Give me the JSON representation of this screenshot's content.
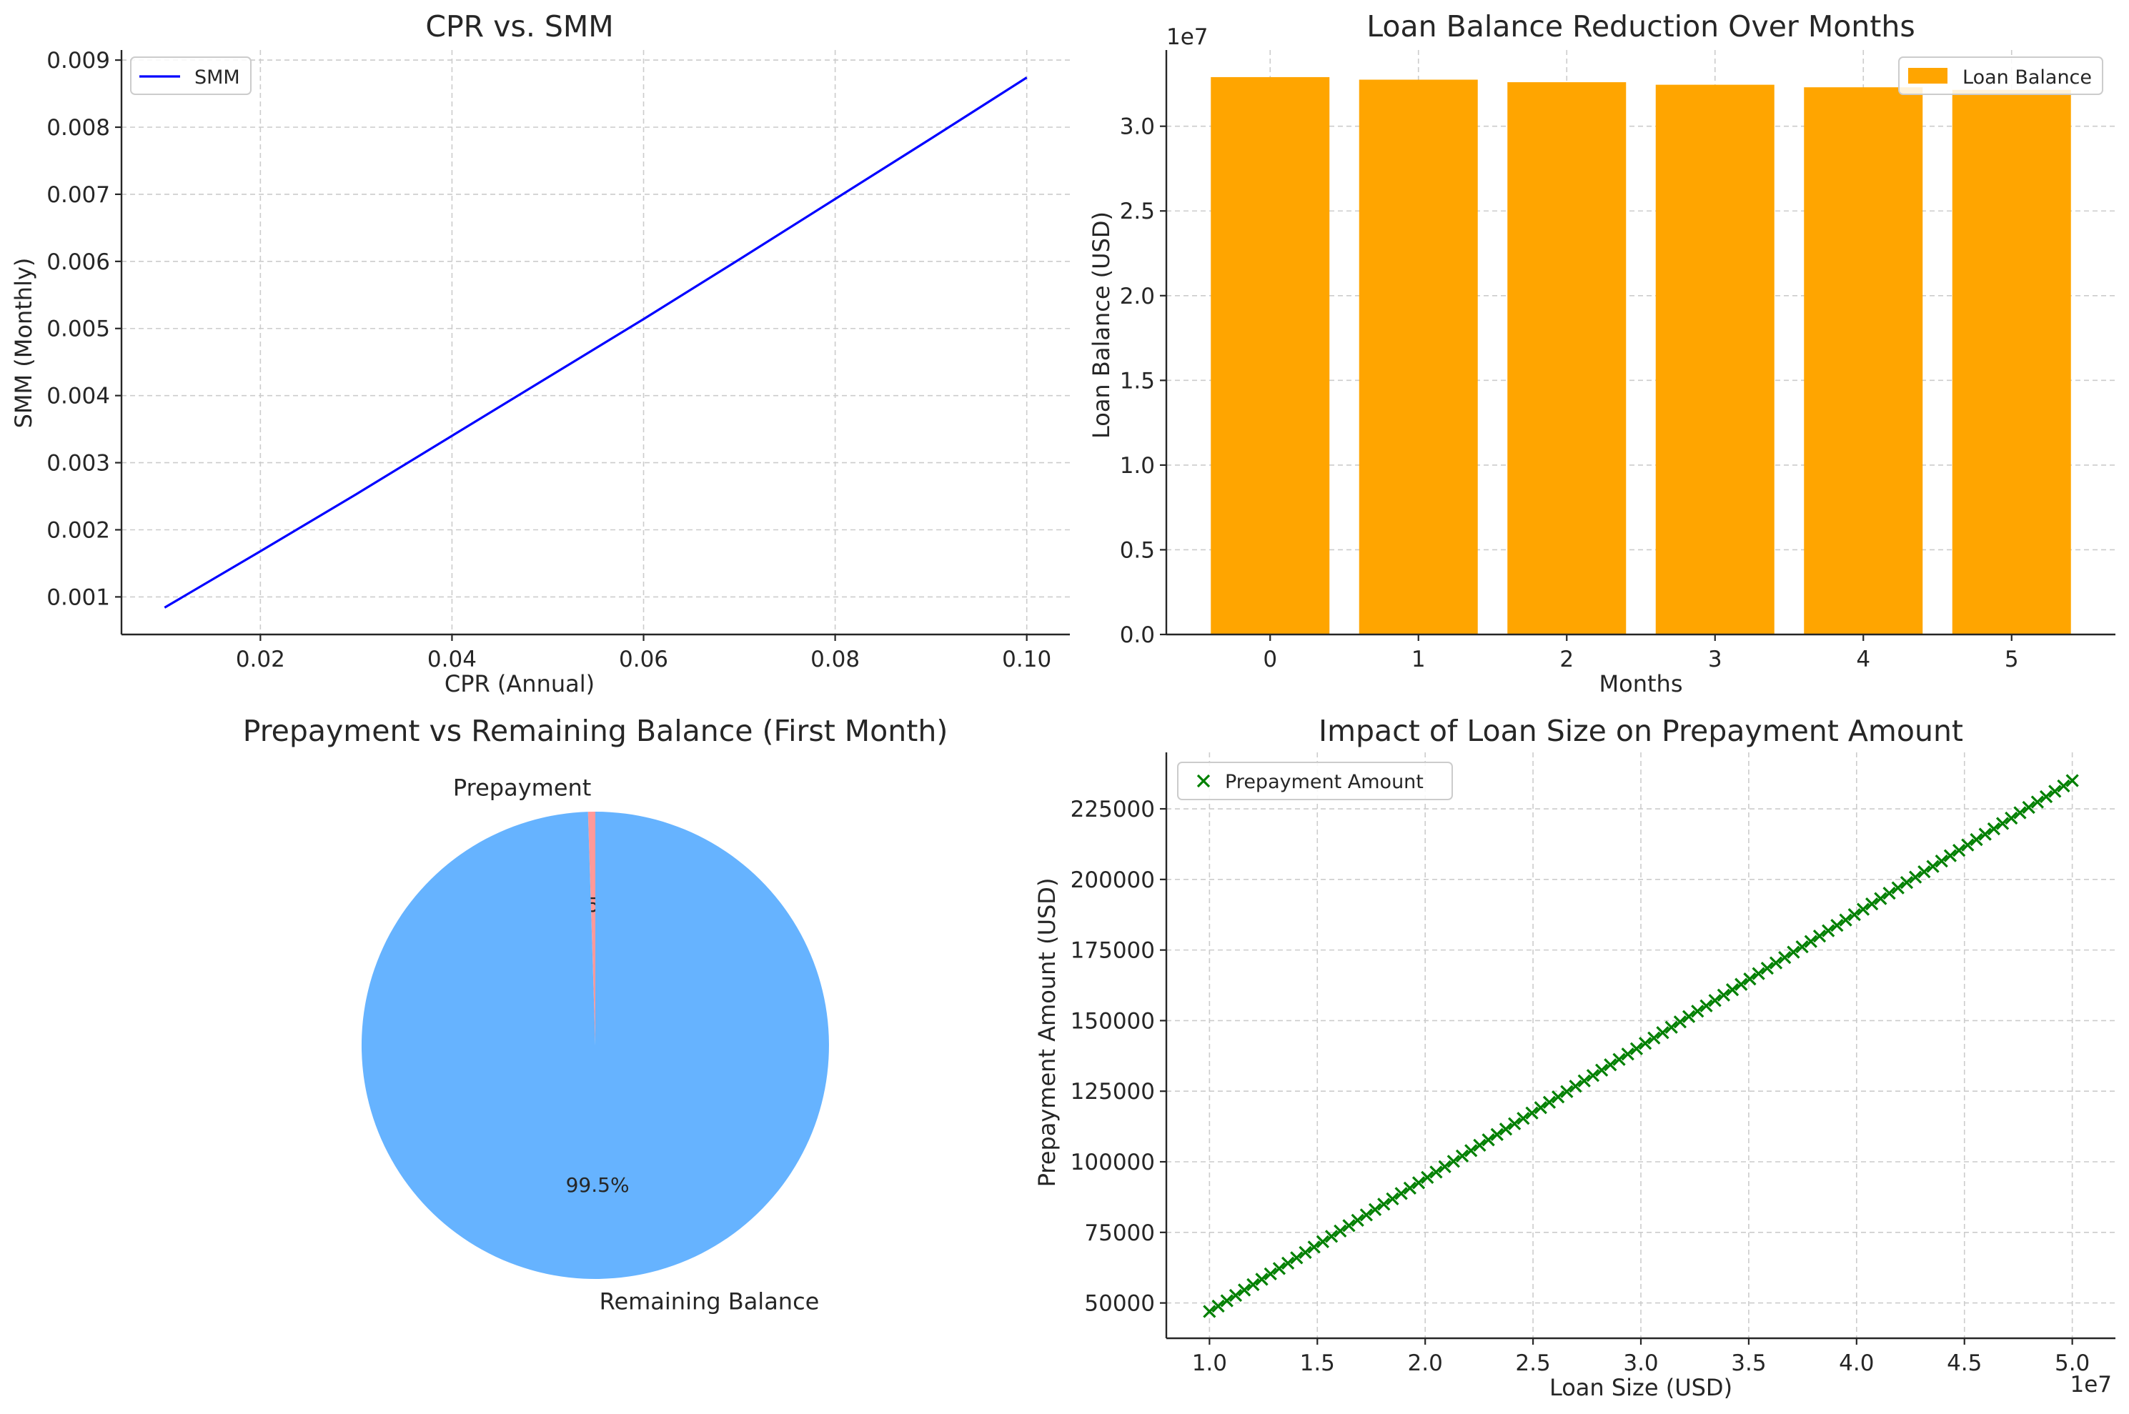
{
  "colors": {
    "smm_line": "#0000ff",
    "bar": "#ffa500",
    "prepay_slice": "#ff9999",
    "remaining_slice": "#66b3ff",
    "scatter": "#008000"
  },
  "chart_data": [
    {
      "type": "line",
      "title": "CPR vs. SMM",
      "xlabel": "CPR (Annual)",
      "ylabel": "SMM (Monthly)",
      "xlim": [
        0.0055,
        0.1045
      ],
      "ylim": [
        0.00044,
        0.00915
      ],
      "xticks": [
        "0.02",
        "0.04",
        "0.06",
        "0.08",
        "0.10"
      ],
      "xtick_values": [
        0.02,
        0.04,
        0.06,
        0.08,
        0.1
      ],
      "yticks": [
        "0.001",
        "0.002",
        "0.003",
        "0.004",
        "0.005",
        "0.006",
        "0.007",
        "0.008",
        "0.009"
      ],
      "ytick_values": [
        0.001,
        0.002,
        0.003,
        0.004,
        0.005,
        0.006,
        0.007,
        0.008,
        0.009
      ],
      "grid": true,
      "legend": "upper-left",
      "series": [
        {
          "name": "SMM",
          "x": [
            0.01,
            0.02,
            0.03,
            0.04,
            0.05,
            0.06,
            0.07,
            0.08,
            0.09,
            0.1
          ],
          "y": [
            0.00084,
            0.00168,
            0.00253,
            0.0034,
            0.00427,
            0.00514,
            0.00603,
            0.00693,
            0.00783,
            0.00874
          ]
        }
      ]
    },
    {
      "type": "bar",
      "title": "Loan Balance Reduction Over Months",
      "xlabel": "Months",
      "ylabel": "Loan Balance (USD)",
      "offset_label": "1e7",
      "categories": [
        "0",
        "1",
        "2",
        "3",
        "4",
        "5"
      ],
      "ylim": [
        0,
        34500000
      ],
      "yticks": [
        "0.0",
        "0.5",
        "1.0",
        "1.5",
        "2.0",
        "2.5",
        "3.0"
      ],
      "ytick_values": [
        0,
        5000000,
        10000000,
        15000000,
        20000000,
        25000000,
        30000000
      ],
      "grid": true,
      "legend": "upper-right",
      "series": [
        {
          "name": "Loan Balance",
          "values": [
            32900000,
            32750000,
            32600000,
            32450000,
            32300000,
            32150000
          ]
        }
      ]
    },
    {
      "type": "pie",
      "title": "Prepayment vs Remaining Balance (First Month)",
      "labels": [
        "Prepayment",
        "Remaining Balance"
      ],
      "values": [
        0.5,
        99.5
      ],
      "autopct": [
        "0.5%",
        "99.5%"
      ]
    },
    {
      "type": "scatter",
      "title": "Impact of Loan Size on Prepayment Amount",
      "xlabel": "Loan Size (USD)",
      "ylabel": "Prepayment Amount (USD)",
      "offset_label": "1e7",
      "xlim": [
        8000000,
        52000000
      ],
      "ylim": [
        37500.0,
        245000
      ],
      "xticks": [
        "1.0",
        "1.5",
        "2.0",
        "2.5",
        "3.0",
        "3.5",
        "4.0",
        "4.5",
        "5.0"
      ],
      "xtick_values": [
        10000000,
        15000000,
        20000000,
        25000000,
        30000000,
        35000000,
        40000000,
        45000000,
        50000000
      ],
      "yticks": [
        "50000",
        "75000",
        "100000",
        "125000",
        "150000",
        "175000",
        "200000",
        "225000"
      ],
      "ytick_values": [
        50000,
        75000,
        100000,
        125000,
        150000,
        175000,
        200000,
        225000
      ],
      "grid": true,
      "legend": "upper-left",
      "series": [
        {
          "name": "Prepayment Amount",
          "x_start": 10000000,
          "x_end": 50000000,
          "count": 100,
          "slope": 0.0047,
          "intercept": 0
        }
      ]
    }
  ]
}
